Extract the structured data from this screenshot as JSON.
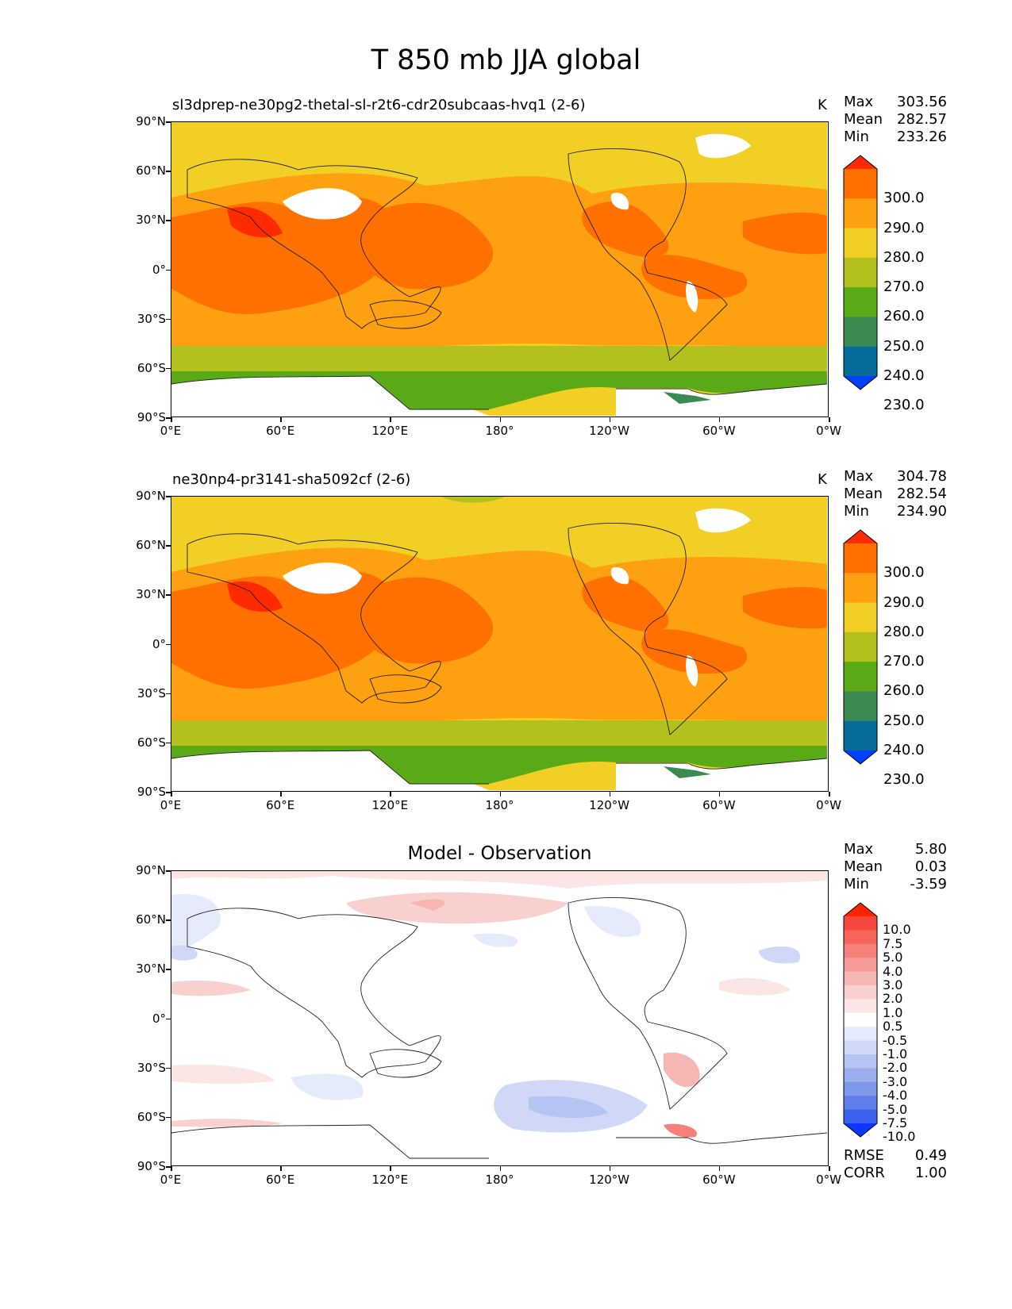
{
  "figure_title": "T 850 mb JJA global",
  "panels": [
    {
      "subtitle": "sl3dprep-ne30pg2-thetal-sl-r2t6-cdr20subcaas-hvq1 (2-6)",
      "units": "K",
      "stats": {
        "max_label": "Max",
        "max": "303.56",
        "mean_label": "Mean",
        "mean": "282.57",
        "min_label": "Min",
        "min": "233.26"
      }
    },
    {
      "subtitle": "ne30np4-pr3141-sha5092cf (2-6)",
      "units": "K",
      "stats": {
        "max_label": "Max",
        "max": "304.78",
        "mean_label": "Mean",
        "mean": "282.54",
        "min_label": "Min",
        "min": "234.90"
      }
    },
    {
      "subtitle": "Model - Observation",
      "stats": {
        "max_label": "Max",
        "max": "5.80",
        "mean_label": "Mean",
        "mean": "0.03",
        "min_label": "Min",
        "min": "-3.59"
      },
      "extra_stats": {
        "rmse_label": "RMSE",
        "rmse": "0.49",
        "corr_label": "CORR",
        "corr": "1.00"
      }
    }
  ],
  "axes": {
    "lat_ticks": [
      "90°N",
      "60°N",
      "30°N",
      "0°",
      "30°S",
      "60°S",
      "90°S"
    ],
    "lon_ticks": [
      "0°E",
      "60°E",
      "120°E",
      "180°",
      "120°W",
      "60°W",
      "0°W"
    ]
  },
  "colorbar_abs": {
    "labels": [
      "300.0",
      "290.0",
      "280.0",
      "270.0",
      "260.0",
      "250.0",
      "240.0",
      "230.0"
    ],
    "colors": [
      "#ff2a00",
      "#ff7000",
      "#ffa010",
      "#f2cf25",
      "#b4c01e",
      "#5aaa18",
      "#3a8a52",
      "#046b9a",
      "#0040ff"
    ]
  },
  "colorbar_diff": {
    "labels": [
      "10.0",
      "7.5",
      "5.0",
      "4.0",
      "3.0",
      "2.0",
      "1.0",
      "0.5",
      "-0.5",
      "-1.0",
      "-2.0",
      "-3.0",
      "-4.0",
      "-5.0",
      "-7.5",
      "-10.0"
    ],
    "colors": [
      "#ff2400",
      "#f8473c",
      "#f7645a",
      "#f6807a",
      "#f59b98",
      "#f6b6b4",
      "#f8d0ce",
      "#fbe6e5",
      "#ffffff",
      "#e6ebfb",
      "#cfd8f7",
      "#b5c4f2",
      "#9aafee",
      "#7e98ea",
      "#5f7eeb",
      "#3b63ef",
      "#0a36ff"
    ]
  },
  "chart_data": {
    "type": "heatmap",
    "title": "T 850 mb JJA global",
    "xlabel": "",
    "ylabel": "",
    "x_ticks": [
      "0°E",
      "60°E",
      "120°E",
      "180°",
      "120°W",
      "60°W",
      "0°W"
    ],
    "y_ticks": [
      "90°N",
      "60°N",
      "30°N",
      "0°",
      "30°S",
      "60°S",
      "90°S"
    ],
    "panels": [
      {
        "name": "sl3dprep-ne30pg2-thetal-sl-r2t6-cdr20subcaas-hvq1 (2-6)",
        "max": 303.56,
        "mean": 282.57,
        "min": 233.26,
        "units": "K"
      },
      {
        "name": "ne30np4-pr3141-sha5092cf (2-6)",
        "max": 304.78,
        "mean": 282.54,
        "min": 234.9,
        "units": "K"
      },
      {
        "name": "Model - Observation",
        "max": 5.8,
        "mean": 0.03,
        "min": -3.59,
        "rmse": 0.49,
        "corr": 1.0
      }
    ],
    "levels_abs": [
      230,
      240,
      250,
      260,
      270,
      280,
      290,
      300
    ],
    "levels_diff": [
      -10,
      -7.5,
      -5,
      -4,
      -3,
      -2,
      -1,
      -0.5,
      0.5,
      1,
      2,
      3,
      4,
      5,
      7.5,
      10
    ]
  }
}
